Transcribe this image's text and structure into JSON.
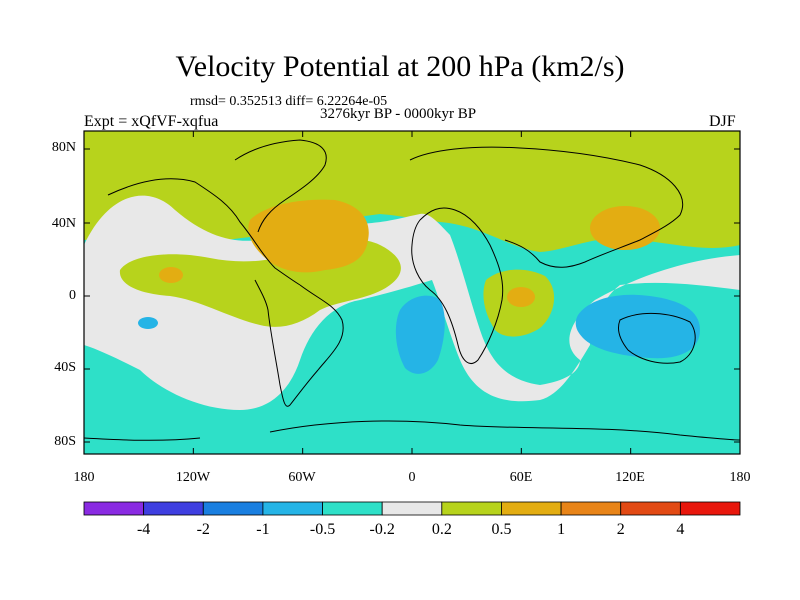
{
  "title": "Velocity Potential at 200 hPa (km2/s)",
  "stats": "rmsd= 0.352513 diff= 6.22264e-05",
  "period": "3276kyr BP - 0000kyr BP",
  "experiment": "Expt = xQfVF-xqfua",
  "season": "DJF",
  "lat_labels": [
    "80N",
    "40N",
    "0",
    "40S",
    "80S"
  ],
  "lon_labels": [
    "180",
    "120W",
    "60W",
    "0",
    "60E",
    "120E",
    "180"
  ],
  "colorbar": {
    "labels": [
      "-4",
      "-2",
      "-1",
      "-0.5",
      "-0.2",
      "0.2",
      "0.5",
      "1",
      "2",
      "4"
    ],
    "colors": [
      "#8a2be2",
      "#3f3fe0",
      "#1a7fe0",
      "#25b4e6",
      "#2ee0c8",
      "#e8e8e8",
      "#b7d31c",
      "#e3ad12",
      "#e88418",
      "#e24a14",
      "#e8170c"
    ]
  },
  "palette": {
    "neg_strong": "#25b4e6",
    "neg_weak": "#2ee0c8",
    "neutral": "#e8e8e8",
    "pos_weak": "#b7d31c",
    "pos_mid": "#e3ad12"
  }
}
